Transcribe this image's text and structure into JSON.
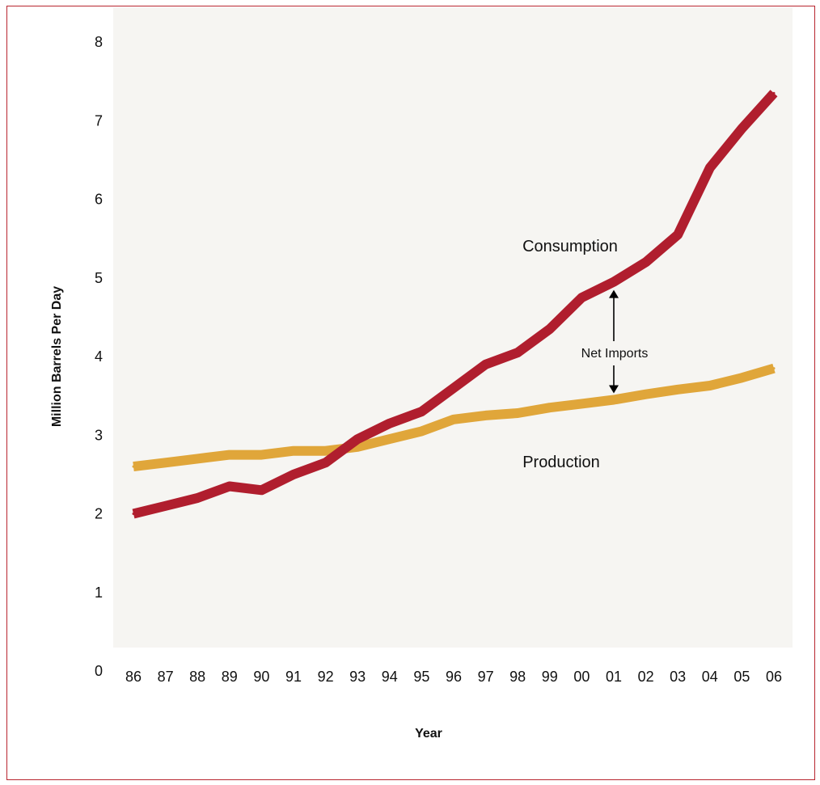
{
  "chart_data": {
    "type": "line",
    "xlabel": "Year",
    "ylabel": "Million Barrels Per Day",
    "ylim": [
      0,
      8
    ],
    "y_ticks": [
      "0",
      "1",
      "2",
      "3",
      "4",
      "5",
      "6",
      "7",
      "8"
    ],
    "categories": [
      "86",
      "87",
      "88",
      "89",
      "90",
      "91",
      "92",
      "93",
      "94",
      "95",
      "96",
      "97",
      "98",
      "99",
      "00",
      "01",
      "02",
      "03",
      "04",
      "05",
      "06"
    ],
    "x_positions": [
      1986,
      1987,
      1988,
      1989,
      1990,
      1991,
      1992,
      1993,
      1994,
      1995,
      1996,
      1997,
      1998,
      1999,
      2000,
      2001,
      2002,
      2003,
      2004,
      2005,
      2006
    ],
    "series": [
      {
        "name": "Consumption",
        "color": "#b01e2e",
        "points": [
          [
            1986,
            2.0
          ],
          [
            1987,
            2.1
          ],
          [
            1988,
            2.2
          ],
          [
            1989,
            2.35
          ],
          [
            1990,
            2.3
          ],
          [
            1991,
            2.5
          ],
          [
            1992,
            2.65
          ],
          [
            1993,
            2.95
          ],
          [
            1994,
            3.15
          ],
          [
            1995,
            3.3
          ],
          [
            1996,
            3.6
          ],
          [
            1997,
            3.9
          ],
          [
            1998,
            4.05
          ],
          [
            1999,
            4.35
          ],
          [
            2000,
            4.75
          ],
          [
            2001,
            4.95
          ],
          [
            2002,
            5.2
          ],
          [
            2003,
            5.55
          ],
          [
            2004,
            6.4
          ],
          [
            2005,
            6.9
          ],
          [
            2006,
            7.35
          ]
        ]
      },
      {
        "name": "Production",
        "color": "#e0a63a",
        "points": [
          [
            1986,
            2.6
          ],
          [
            1987,
            2.65
          ],
          [
            1988,
            2.7
          ],
          [
            1989,
            2.75
          ],
          [
            1990,
            2.75
          ],
          [
            1991,
            2.8
          ],
          [
            1992,
            2.8
          ],
          [
            1993,
            2.85
          ],
          [
            1994,
            2.95
          ],
          [
            1995,
            3.05
          ],
          [
            1996,
            3.2
          ],
          [
            1997,
            3.25
          ],
          [
            1998,
            3.28
          ],
          [
            1999,
            3.35
          ],
          [
            2000,
            3.4
          ],
          [
            2001,
            3.45
          ],
          [
            2002,
            3.52
          ],
          [
            2003,
            3.58
          ],
          [
            2004,
            3.63
          ],
          [
            2005,
            3.73
          ],
          [
            2006,
            3.85
          ]
        ]
      }
    ],
    "annotations": [
      {
        "text": "Consumption"
      },
      {
        "text": "Production"
      },
      {
        "text": "Net Imports",
        "x": 2001,
        "y_from": 3.45,
        "y_to": 4.95
      }
    ],
    "grid": false,
    "legend": "inline labels"
  },
  "colors": {
    "frame": "#b8252f",
    "plot_background": "#f6f5f2"
  }
}
